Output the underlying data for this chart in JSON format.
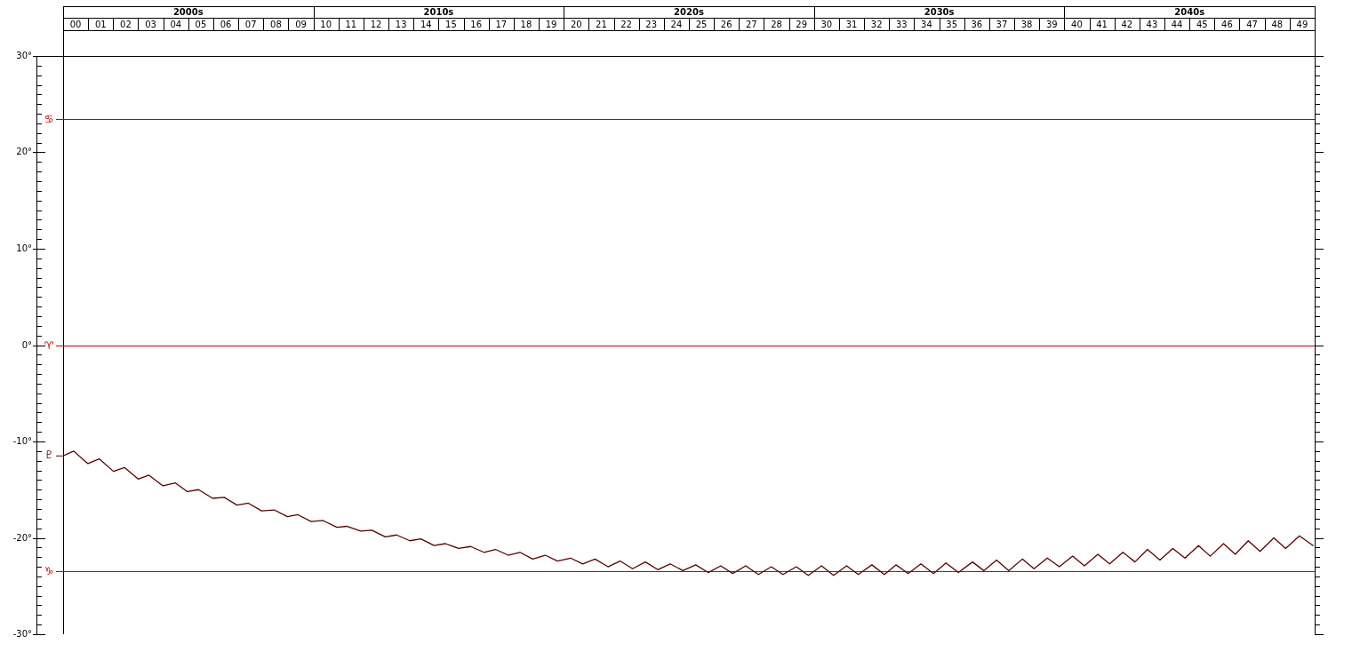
{
  "chart_data": {
    "type": "line",
    "legend": "left",
    "marker": "none",
    "line_style": "solid",
    "xlim": [
      "2000-01-01",
      "2050-01-01"
    ],
    "xticks": [
      {
        "value": "2000-07-02",
        "label": "00"
      },
      {
        "value": "2001-07-02",
        "label": "01"
      },
      {
        "value": "2002-07-02",
        "label": "02"
      },
      {
        "value": "2003-07-02",
        "label": "03"
      },
      {
        "value": "2004-07-02",
        "label": "04"
      },
      {
        "value": "2005-07-02",
        "label": "05"
      },
      {
        "value": "2006-07-02",
        "label": "06"
      },
      {
        "value": "2007-07-02",
        "label": "07"
      },
      {
        "value": "2008-07-02",
        "label": "08"
      },
      {
        "value": "2009-07-02",
        "label": "09"
      },
      {
        "value": "2010-07-02",
        "label": "10"
      },
      {
        "value": "2011-07-02",
        "label": "11"
      },
      {
        "value": "2012-07-02",
        "label": "12"
      },
      {
        "value": "2013-07-02",
        "label": "13"
      },
      {
        "value": "2014-07-02",
        "label": "14"
      },
      {
        "value": "2015-07-02",
        "label": "15"
      },
      {
        "value": "2016-07-02",
        "label": "16"
      },
      {
        "value": "2017-07-02",
        "label": "17"
      },
      {
        "value": "2018-07-02",
        "label": "18"
      },
      {
        "value": "2019-07-02",
        "label": "19"
      },
      {
        "value": "2020-07-02",
        "label": "20"
      },
      {
        "value": "2021-07-02",
        "label": "21"
      },
      {
        "value": "2022-07-02",
        "label": "22"
      },
      {
        "value": "2023-07-02",
        "label": "23"
      },
      {
        "value": "2024-07-02",
        "label": "24"
      },
      {
        "value": "2025-07-02",
        "label": "25"
      },
      {
        "value": "2026-07-02",
        "label": "26"
      },
      {
        "value": "2027-07-02",
        "label": "27"
      },
      {
        "value": "2028-07-02",
        "label": "28"
      },
      {
        "value": "2029-07-02",
        "label": "29"
      },
      {
        "value": "2030-07-02",
        "label": "30"
      },
      {
        "value": "2031-07-02",
        "label": "31"
      },
      {
        "value": "2032-07-02",
        "label": "32"
      },
      {
        "value": "2033-07-02",
        "label": "33"
      },
      {
        "value": "2034-07-02",
        "label": "34"
      },
      {
        "value": "2035-07-02",
        "label": "35"
      },
      {
        "value": "2036-07-02",
        "label": "36"
      },
      {
        "value": "2037-07-02",
        "label": "37"
      },
      {
        "value": "2038-07-02",
        "label": "38"
      },
      {
        "value": "2039-07-02",
        "label": "39"
      },
      {
        "value": "2040-07-02",
        "label": "40"
      },
      {
        "value": "2041-07-02",
        "label": "41"
      },
      {
        "value": "2042-07-02",
        "label": "42"
      },
      {
        "value": "2043-07-02",
        "label": "43"
      },
      {
        "value": "2044-07-02",
        "label": "44"
      },
      {
        "value": "2045-07-02",
        "label": "45"
      },
      {
        "value": "2046-07-02",
        "label": "46"
      },
      {
        "value": "2047-07-02",
        "label": "47"
      },
      {
        "value": "2048-07-02",
        "label": "48"
      },
      {
        "value": "2049-07-02",
        "label": "49"
      }
    ],
    "annotations": [
      "2000s",
      "2010s",
      "2020s",
      "2030s",
      "2040s"
    ],
    "ylim": [
      -30,
      30
    ],
    "yticks": [
      {
        "value": -30,
        "label": "-30°"
      },
      {
        "value": -29,
        "label": null
      },
      {
        "value": -28,
        "label": null
      },
      {
        "value": -27,
        "label": null
      },
      {
        "value": -26,
        "label": null
      },
      {
        "value": -25,
        "label": null
      },
      {
        "value": -24,
        "label": null
      },
      {
        "value": -23,
        "label": null
      },
      {
        "value": -22,
        "label": null
      },
      {
        "value": -21,
        "label": null
      },
      {
        "value": -20,
        "label": "-20°"
      },
      {
        "value": -19,
        "label": null
      },
      {
        "value": -18,
        "label": null
      },
      {
        "value": -17,
        "label": null
      },
      {
        "value": -16,
        "label": null
      },
      {
        "value": -15,
        "label": null
      },
      {
        "value": -14,
        "label": null
      },
      {
        "value": -13,
        "label": null
      },
      {
        "value": -12,
        "label": null
      },
      {
        "value": -11,
        "label": null
      },
      {
        "value": -10,
        "label": "-10°"
      },
      {
        "value": -9,
        "label": null
      },
      {
        "value": -8,
        "label": null
      },
      {
        "value": -7,
        "label": null
      },
      {
        "value": -6,
        "label": null
      },
      {
        "value": -5,
        "label": null
      },
      {
        "value": -4,
        "label": null
      },
      {
        "value": -3,
        "label": null
      },
      {
        "value": -2,
        "label": null
      },
      {
        "value": -1,
        "label": null
      },
      {
        "value": 0,
        "label": "0°"
      },
      {
        "value": 1,
        "label": null
      },
      {
        "value": 2,
        "label": null
      },
      {
        "value": 3,
        "label": null
      },
      {
        "value": 4,
        "label": null
      },
      {
        "value": 5,
        "label": null
      },
      {
        "value": 6,
        "label": null
      },
      {
        "value": 7,
        "label": null
      },
      {
        "value": 8,
        "label": null
      },
      {
        "value": 9,
        "label": null
      },
      {
        "value": 10,
        "label": "10°"
      },
      {
        "value": 11,
        "label": null
      },
      {
        "value": 12,
        "label": null
      },
      {
        "value": 13,
        "label": null
      },
      {
        "value": 14,
        "label": null
      },
      {
        "value": 15,
        "label": null
      },
      {
        "value": 16,
        "label": null
      },
      {
        "value": 17,
        "label": null
      },
      {
        "value": 18,
        "label": null
      },
      {
        "value": 19,
        "label": null
      },
      {
        "value": 20,
        "label": "20°"
      },
      {
        "value": 21,
        "label": null
      },
      {
        "value": 22,
        "label": null
      },
      {
        "value": 23,
        "label": null
      },
      {
        "value": 24,
        "label": null
      },
      {
        "value": 25,
        "label": null
      },
      {
        "value": 26,
        "label": null
      },
      {
        "value": 27,
        "label": null
      },
      {
        "value": 28,
        "label": null
      },
      {
        "value": 29,
        "label": null
      },
      {
        "value": 30,
        "label": "30°"
      }
    ],
    "ref_lines": [
      {
        "axis": "y",
        "value": 23.44,
        "label": "♋",
        "color": "#cc0000"
      },
      {
        "axis": "y",
        "value": 0,
        "label": "♈",
        "color": "#cc0000"
      },
      {
        "axis": "y",
        "value": -23.44,
        "label": "♑",
        "color": "#cc0000"
      }
    ],
    "series": [
      {
        "name": "♇",
        "color": "#5a0000",
        "x": [
          "2000-01-01",
          "2000-06-03",
          "2000-12-28",
          "2001-06-10",
          "2002-01-05",
          "2002-06-14",
          "2003-01-01",
          "2003-06-07",
          "2003-12-28",
          "2004-06-28",
          "2004-12-17",
          "2005-05-30",
          "2005-12-24",
          "2006-06-10",
          "2006-12-13",
          "2007-05-27",
          "2007-12-06",
          "2008-06-07",
          "2008-12-17",
          "2009-05-19",
          "2009-11-29",
          "2010-05-19",
          "2010-12-10",
          "2011-05-01",
          "2011-11-22",
          "2012-05-01",
          "2012-11-14",
          "2013-04-28",
          "2013-11-07",
          "2014-04-17",
          "2014-10-27",
          "2015-04-10",
          "2015-10-20",
          "2016-04-13",
          "2016-10-23",
          "2017-04-10",
          "2017-10-13",
          "2018-04-02",
          "2018-10-05",
          "2019-04-06",
          "2019-10-02",
          "2020-04-10",
          "2020-10-05",
          "2021-04-02",
          "2021-10-09",
          "2022-04-02",
          "2022-10-02",
          "2023-04-06",
          "2023-10-05",
          "2024-04-02",
          "2024-10-05",
          "2025-04-10",
          "2025-10-09",
          "2026-04-10",
          "2026-10-02",
          "2027-04-10",
          "2027-10-13",
          "2028-04-17",
          "2028-10-05",
          "2029-04-17",
          "2029-10-09",
          "2030-04-20",
          "2030-10-13",
          "2031-04-20",
          "2031-10-09",
          "2032-04-24",
          "2032-10-23",
          "2033-04-10",
          "2033-10-05",
          "2034-04-10",
          "2034-10-09",
          "2035-04-10",
          "2035-10-09",
          "2036-05-01",
          "2036-10-13",
          "2037-04-17",
          "2037-10-13",
          "2038-04-28",
          "2038-10-16",
          "2039-04-28",
          "2039-10-20",
          "2040-05-01",
          "2040-10-20",
          "2041-05-05",
          "2041-10-23",
          "2042-05-05",
          "2042-10-27",
          "2043-04-28",
          "2043-10-27",
          "2044-05-01",
          "2044-10-27",
          "2045-05-12",
          "2045-10-31",
          "2046-05-12",
          "2046-10-31",
          "2047-05-08",
          "2047-10-27",
          "2048-05-16",
          "2048-11-03",
          "2049-05-23",
          "2049-12-10"
        ],
        "values": [
          -11.5,
          -11.0,
          -12.3,
          -11.8,
          -13.1,
          -12.7,
          -13.9,
          -13.5,
          -14.6,
          -14.3,
          -15.2,
          -15.0,
          -15.9,
          -15.8,
          -16.6,
          -16.4,
          -17.2,
          -17.1,
          -17.8,
          -17.6,
          -18.3,
          -18.2,
          -18.9,
          -18.8,
          -19.3,
          -19.2,
          -19.9,
          -19.7,
          -20.3,
          -20.1,
          -20.8,
          -20.6,
          -21.1,
          -20.9,
          -21.5,
          -21.2,
          -21.8,
          -21.5,
          -22.2,
          -21.8,
          -22.4,
          -22.1,
          -22.7,
          -22.2,
          -23.0,
          -22.4,
          -23.2,
          -22.5,
          -23.3,
          -22.7,
          -23.4,
          -22.8,
          -23.6,
          -22.9,
          -23.7,
          -22.9,
          -23.8,
          -23.0,
          -23.8,
          -23.0,
          -23.9,
          -22.9,
          -23.9,
          -22.9,
          -23.8,
          -22.8,
          -23.8,
          -22.8,
          -23.7,
          -22.7,
          -23.7,
          -22.6,
          -23.6,
          -22.5,
          -23.4,
          -22.3,
          -23.4,
          -22.2,
          -23.2,
          -22.1,
          -23.0,
          -21.9,
          -22.9,
          -21.7,
          -22.7,
          -21.5,
          -22.5,
          -21.2,
          -22.3,
          -21.1,
          -22.1,
          -20.8,
          -21.9,
          -20.6,
          -21.7,
          -20.3,
          -21.4,
          -20.0,
          -21.1,
          -19.8,
          -20.8
        ]
      }
    ]
  }
}
